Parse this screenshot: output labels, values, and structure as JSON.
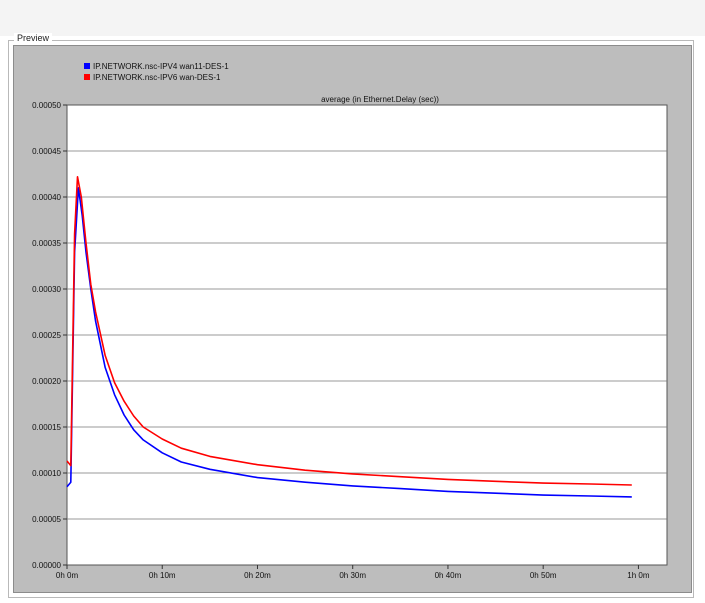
{
  "preview_label": "Preview",
  "chart_data": {
    "type": "line",
    "title": "average (in Ethernet.Delay (sec))",
    "xlabel": "",
    "ylabel": "",
    "x_unit": "minutes",
    "xlim": [
      0,
      63
    ],
    "ylim": [
      0,
      0.0005
    ],
    "xticks": [
      {
        "value": 0,
        "label": "0h 0m"
      },
      {
        "value": 10,
        "label": "0h 10m"
      },
      {
        "value": 20,
        "label": "0h 20m"
      },
      {
        "value": 30,
        "label": "0h 30m"
      },
      {
        "value": 40,
        "label": "0h 40m"
      },
      {
        "value": 50,
        "label": "0h 50m"
      },
      {
        "value": 60,
        "label": "1h 0m"
      }
    ],
    "yticks": [
      {
        "value": 0.0,
        "label": "0.00000"
      },
      {
        "value": 5e-05,
        "label": "0.00005"
      },
      {
        "value": 0.0001,
        "label": "0.00010"
      },
      {
        "value": 0.00015,
        "label": "0.00015"
      },
      {
        "value": 0.0002,
        "label": "0.00020"
      },
      {
        "value": 0.00025,
        "label": "0.00025"
      },
      {
        "value": 0.0003,
        "label": "0.00030"
      },
      {
        "value": 0.00035,
        "label": "0.00035"
      },
      {
        "value": 0.0004,
        "label": "0.00040"
      },
      {
        "value": 0.00045,
        "label": "0.00045"
      },
      {
        "value": 0.0005,
        "label": "0.00050"
      }
    ],
    "grid": true,
    "legend_position": "top-left",
    "series": [
      {
        "name": "IP.NETWORK.nsc-IPV4  wan11-DES-1",
        "color": "#0000ff",
        "points": [
          [
            0.0,
            8.5e-05
          ],
          [
            0.4,
            9e-05
          ],
          [
            0.8,
            0.00034
          ],
          [
            1.2,
            0.00041
          ],
          [
            1.6,
            0.00038
          ],
          [
            2.0,
            0.00034
          ],
          [
            2.5,
            0.0003
          ],
          [
            3.0,
            0.000265
          ],
          [
            4.0,
            0.000215
          ],
          [
            5.0,
            0.000185
          ],
          [
            6.0,
            0.000163
          ],
          [
            7.0,
            0.000147
          ],
          [
            8.0,
            0.000136
          ],
          [
            10.0,
            0.000122
          ],
          [
            12.0,
            0.000112
          ],
          [
            15.0,
            0.000104
          ],
          [
            20.0,
            9.5e-05
          ],
          [
            25.0,
            9e-05
          ],
          [
            30.0,
            8.6e-05
          ],
          [
            35.0,
            8.3e-05
          ],
          [
            40.0,
            8e-05
          ],
          [
            45.0,
            7.8e-05
          ],
          [
            50.0,
            7.6e-05
          ],
          [
            55.0,
            7.5e-05
          ],
          [
            59.3,
            7.4e-05
          ]
        ]
      },
      {
        "name": "IP.NETWORK.nsc-IPV6 wan-DES-1",
        "color": "#ff0000",
        "points": [
          [
            0.0,
            0.000113
          ],
          [
            0.4,
            0.000108
          ],
          [
            0.8,
            0.00036
          ],
          [
            1.1,
            0.000422
          ],
          [
            1.5,
            0.0004
          ],
          [
            2.0,
            0.00035
          ],
          [
            2.5,
            0.000305
          ],
          [
            3.0,
            0.000275
          ],
          [
            4.0,
            0.000228
          ],
          [
            5.0,
            0.000198
          ],
          [
            6.0,
            0.000178
          ],
          [
            7.0,
            0.000162
          ],
          [
            8.0,
            0.00015
          ],
          [
            10.0,
            0.000137
          ],
          [
            12.0,
            0.000127
          ],
          [
            15.0,
            0.000118
          ],
          [
            20.0,
            0.000109
          ],
          [
            25.0,
            0.000103
          ],
          [
            30.0,
            9.9e-05
          ],
          [
            35.0,
            9.6e-05
          ],
          [
            40.0,
            9.3e-05
          ],
          [
            45.0,
            9.1e-05
          ],
          [
            50.0,
            8.9e-05
          ],
          [
            55.0,
            8.8e-05
          ],
          [
            59.3,
            8.7e-05
          ]
        ]
      }
    ]
  }
}
